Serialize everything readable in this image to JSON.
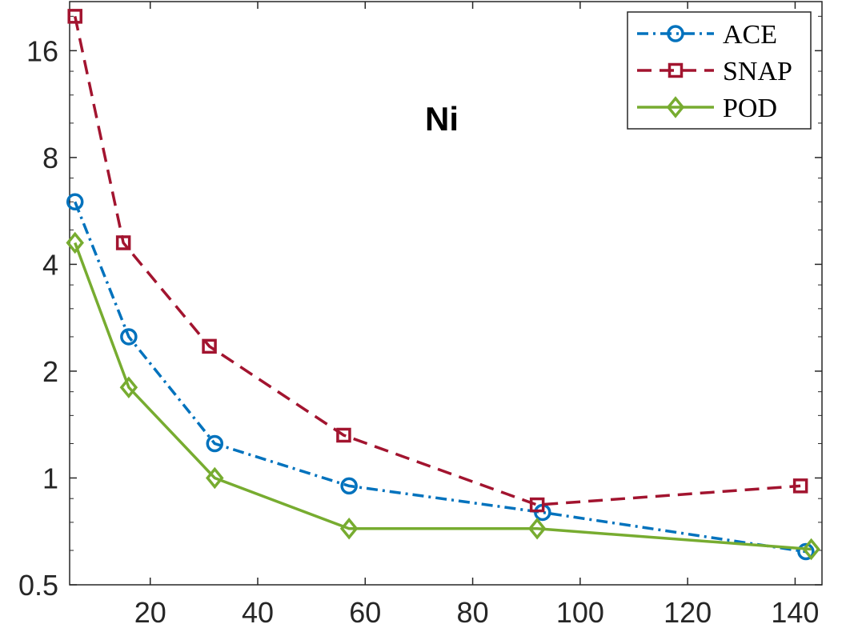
{
  "chart_data": {
    "type": "line",
    "title": "Ni",
    "xlabel": "",
    "ylabel": "",
    "xlim": [
      5,
      145
    ],
    "ylim": [
      0.5,
      22
    ],
    "yscale": "log2",
    "xticks": [
      20,
      40,
      60,
      80,
      100,
      120,
      140
    ],
    "yticks": [
      0.5,
      1,
      2,
      4,
      8,
      16
    ],
    "xtick_labels": [
      "20",
      "40",
      "60",
      "80",
      "100",
      "120",
      "140"
    ],
    "ytick_labels": [
      "0.5",
      "1",
      "2",
      "4",
      "8",
      "16"
    ],
    "grid": false,
    "legend_position": "top-right",
    "series": [
      {
        "name": "ACE",
        "color": "#0072BD",
        "line_style": "dash-dot",
        "marker": "circle",
        "x": [
          6,
          16,
          32,
          57,
          93,
          142
        ],
        "y": [
          6.0,
          2.5,
          1.25,
          0.95,
          0.8,
          0.62
        ]
      },
      {
        "name": "SNAP",
        "color": "#A2142F",
        "line_style": "dashed",
        "marker": "square",
        "x": [
          6,
          15,
          31,
          56,
          92,
          141
        ],
        "y": [
          20,
          4.6,
          2.35,
          1.32,
          0.84,
          0.95
        ]
      },
      {
        "name": "POD",
        "color": "#77AC30",
        "line_style": "solid",
        "marker": "diamond",
        "x": [
          6,
          16,
          32,
          57,
          92,
          143
        ],
        "y": [
          4.6,
          1.8,
          1.0,
          0.72,
          0.72,
          0.63
        ]
      }
    ]
  }
}
